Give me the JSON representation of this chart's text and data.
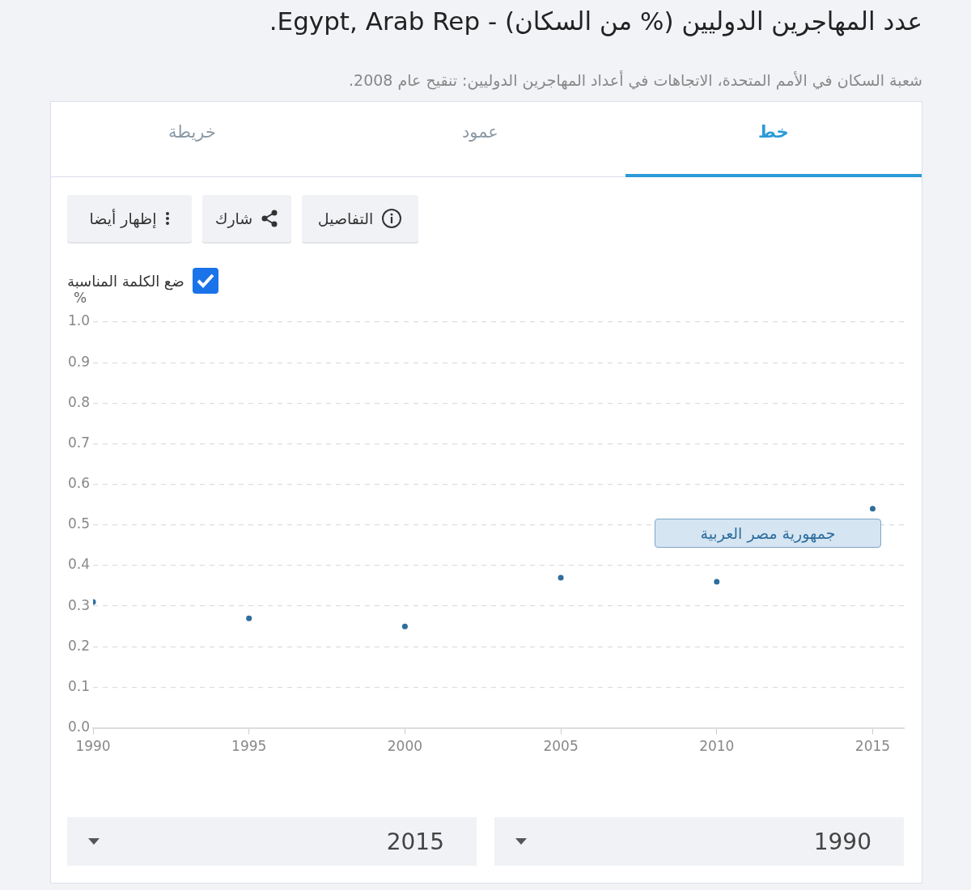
{
  "chart_data": {
    "type": "scatter",
    "title": "عدد المهاجرين الدوليين (% من السكان) - Egypt, Arab Rep.",
    "subtitle": "شعبة السكان في الأمم المتحدة، الاتجاهات في أعداد المهاجرين الدوليين: تنقيح عام 2008.",
    "ylabel": "%",
    "annotations": [
      "خريطة",
      "عمود",
      "خط",
      "إظهار أيضا",
      "شارك",
      "التفاصيل",
      "ضع الكلمة المناسبة",
      "2015",
      "1990"
    ],
    "x": [
      1990,
      1995,
      2000,
      2005,
      2010,
      2015
    ],
    "series": [
      {
        "name": "جمهورية مصر العربية",
        "color": "#2e6e9e",
        "values": [
          0.31,
          0.27,
          0.25,
          0.37,
          0.36,
          0.54
        ]
      }
    ],
    "xlim": [
      1990,
      2016
    ],
    "xticks": [
      1990,
      1995,
      2000,
      2005,
      2010,
      2015
    ],
    "ylim": [
      0,
      1
    ],
    "yticks": [
      {
        "value": 0,
        "label": "0.0"
      },
      {
        "value": 0.1,
        "label": "0.1"
      },
      {
        "value": 0.2,
        "label": "0.2"
      },
      {
        "value": 0.3,
        "label": "0.3"
      },
      {
        "value": 0.4,
        "label": "0.4"
      },
      {
        "value": 0.5,
        "label": "0.5"
      },
      {
        "value": 0.6,
        "label": "0.6"
      },
      {
        "value": 0.7,
        "label": "0.7"
      },
      {
        "value": 0.8,
        "label": "0.8"
      },
      {
        "value": 0.9,
        "label": "0.9"
      },
      {
        "value": 1,
        "label": "1.0"
      }
    ],
    "grid": "y",
    "marker": "circle"
  }
}
